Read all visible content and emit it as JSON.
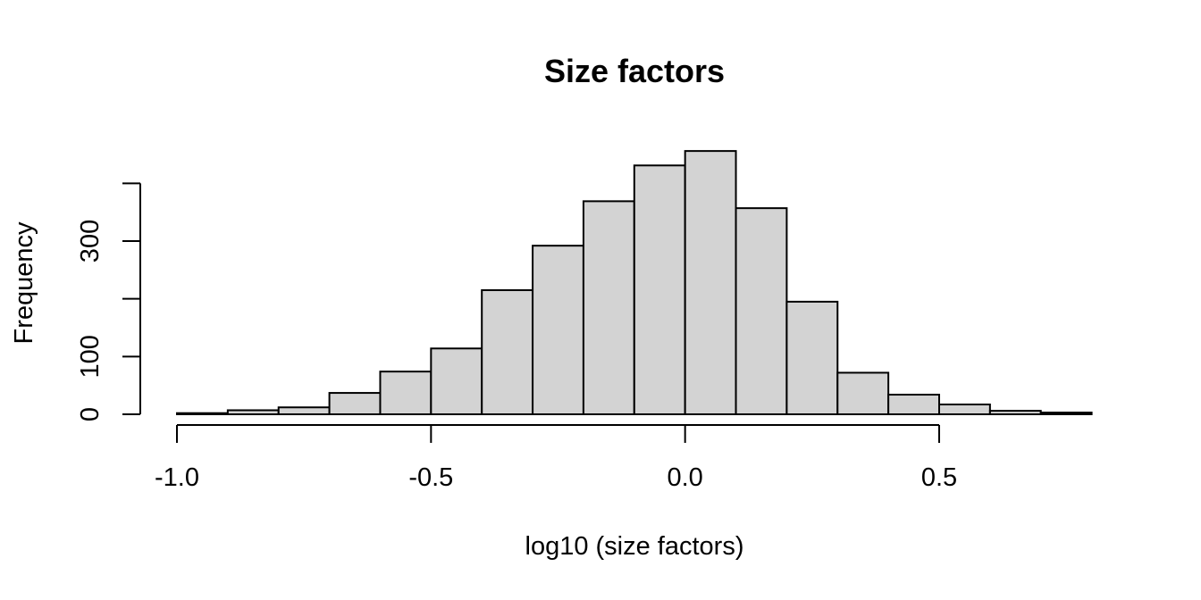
{
  "chart_data": {
    "type": "bar",
    "title": "Size factors",
    "xlabel": "log10 (size factors)",
    "ylabel": "Frequency",
    "bin_edges": [
      -1.0,
      -0.9,
      -0.8,
      -0.7,
      -0.6,
      -0.5,
      -0.4,
      -0.3,
      -0.2,
      -0.1,
      0.0,
      0.1,
      0.2,
      0.3,
      0.4,
      0.5,
      0.6,
      0.7,
      0.8
    ],
    "values": [
      2,
      7,
      12,
      37,
      74,
      114,
      215,
      292,
      369,
      431,
      456,
      357,
      195,
      72,
      34,
      17,
      6,
      3
    ],
    "x_ticks": [
      -1.0,
      -0.5,
      0.0,
      0.5
    ],
    "x_tick_labels": [
      "-1.0",
      "-0.5",
      "0.0",
      "0.5"
    ],
    "y_ticks": [
      0,
      100,
      200,
      300,
      400
    ],
    "y_tick_labels": [
      "0",
      "100",
      "",
      "300",
      ""
    ],
    "xlim": [
      -1.0,
      0.8
    ],
    "ylim": [
      0,
      400
    ],
    "bar_color": "#d3d3d3",
    "grid": false,
    "legend": "none"
  }
}
